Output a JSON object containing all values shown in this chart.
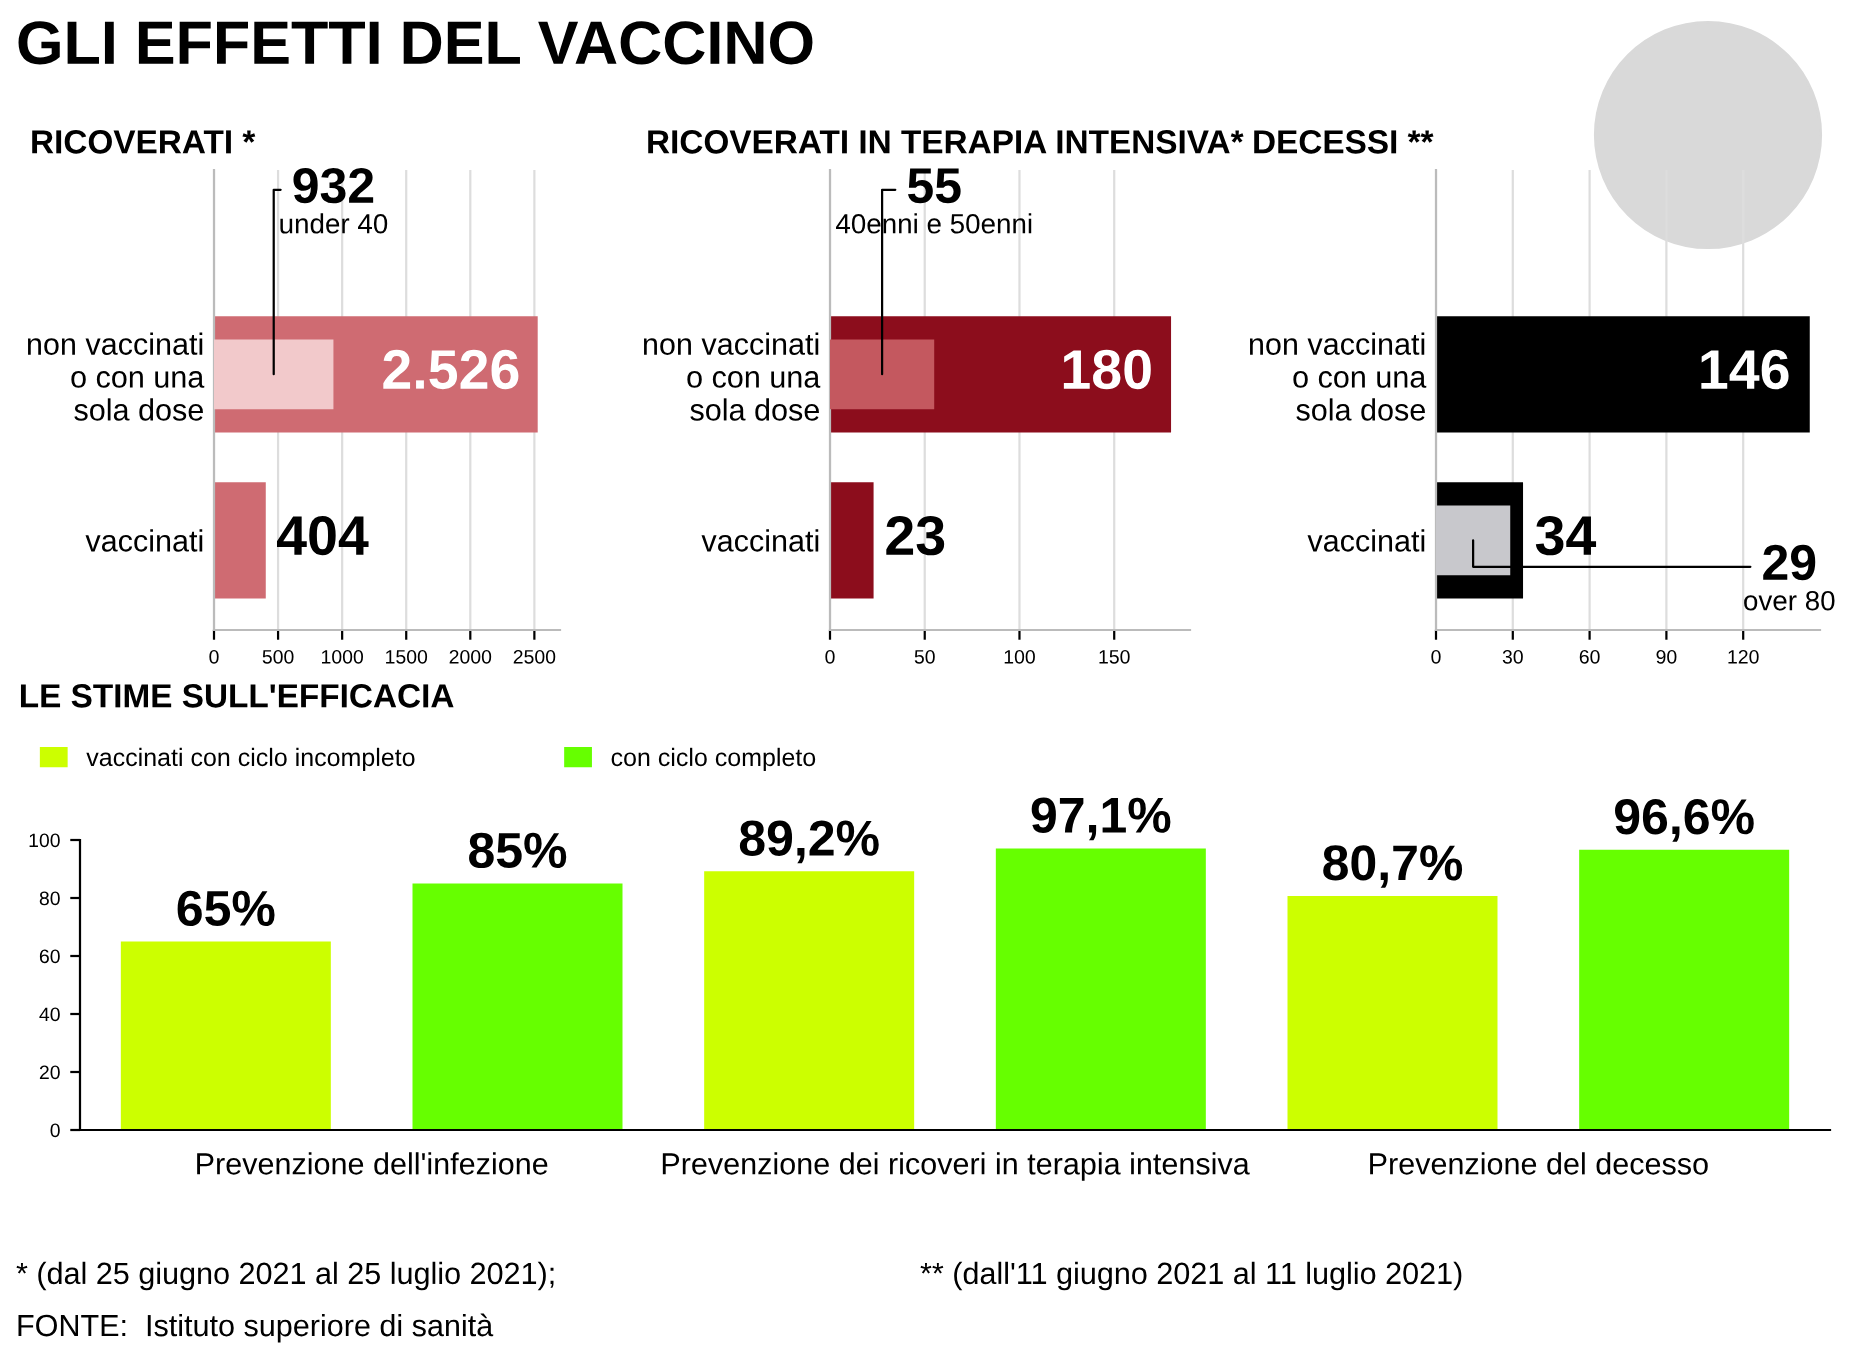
{
  "chart_data": [
    {
      "type": "other",
      "title": "GLI EFFETTI DEL VACCINO",
      "annotations": [
        "* (dal 25 giugno 2021 al 25 luglio 2021);",
        "** (dall'11 giugno 2021 al 11 luglio 2021)",
        "FONTE:  Istituto superiore di sanità"
      ]
    },
    {
      "type": "bar",
      "orientation": "horizontal",
      "title": "RICOVERATI *",
      "categories": [
        "non vaccinati\no con una\nsola dose",
        "vaccinati"
      ],
      "xlim": [
        0,
        2700
      ],
      "xticks": [
        0,
        500,
        1000,
        1500,
        2000,
        2500
      ],
      "grid": "x",
      "series": [
        {
          "color": "#cf6b72",
          "values": [
            2526,
            404
          ],
          "value_labels": [
            "2.526",
            "404"
          ]
        },
        {
          "name": "under 40",
          "color": "#f2c9cb",
          "values": [
            932,
            null
          ],
          "value_labels": [
            "932",
            null
          ]
        }
      ]
    },
    {
      "type": "bar",
      "orientation": "horizontal",
      "title": "RICOVERATI IN TERAPIA INTENSIVA*",
      "categories": [
        "non vaccinati\no con una\nsola dose",
        "vaccinati"
      ],
      "xlim": [
        0,
        190
      ],
      "xticks": [
        0,
        50,
        100,
        150
      ],
      "grid": "x",
      "series": [
        {
          "color": "#8c0d1c",
          "values": [
            180,
            23
          ],
          "value_labels": [
            "180",
            "23"
          ]
        },
        {
          "name": "40enni e 50enni",
          "color": "#c4585f",
          "values": [
            55,
            null
          ],
          "value_labels": [
            "55",
            null
          ]
        }
      ]
    },
    {
      "type": "bar",
      "orientation": "horizontal",
      "title": "DECESSI **",
      "categories": [
        "non vaccinati\no con una\nsola dose",
        "vaccinati"
      ],
      "xlim": [
        0,
        150
      ],
      "xticks": [
        0,
        30,
        60,
        90,
        120
      ],
      "grid": "x",
      "series": [
        {
          "color": "#000000",
          "values": [
            146,
            34
          ],
          "value_labels": [
            "146",
            "34"
          ]
        },
        {
          "name": "over 80",
          "color": "#c8c8cc",
          "values": [
            null,
            29
          ],
          "value_labels": [
            null,
            "29"
          ]
        }
      ]
    },
    {
      "type": "bar",
      "title": "LE STIME SULL'EFFICACIA",
      "categories": [
        "Prevenzione dell'infezione",
        "Prevenzione dei ricoveri in terapia intensiva",
        "Prevenzione del decesso"
      ],
      "ylim": [
        0,
        100
      ],
      "yticks": [
        0,
        20,
        40,
        60,
        80,
        100
      ],
      "legend": "top left",
      "series": [
        {
          "name": "vaccinati con ciclo incompleto",
          "color": "#ccff00",
          "values": [
            65,
            89.2,
            80.7
          ],
          "value_labels": [
            "65%",
            "89,2%",
            "80,7%"
          ]
        },
        {
          "name": "con ciclo completo",
          "color": "#66ff00",
          "values": [
            85,
            97.1,
            96.6
          ],
          "value_labels": [
            "85%",
            "97,1%",
            "96,6%"
          ]
        }
      ]
    }
  ]
}
